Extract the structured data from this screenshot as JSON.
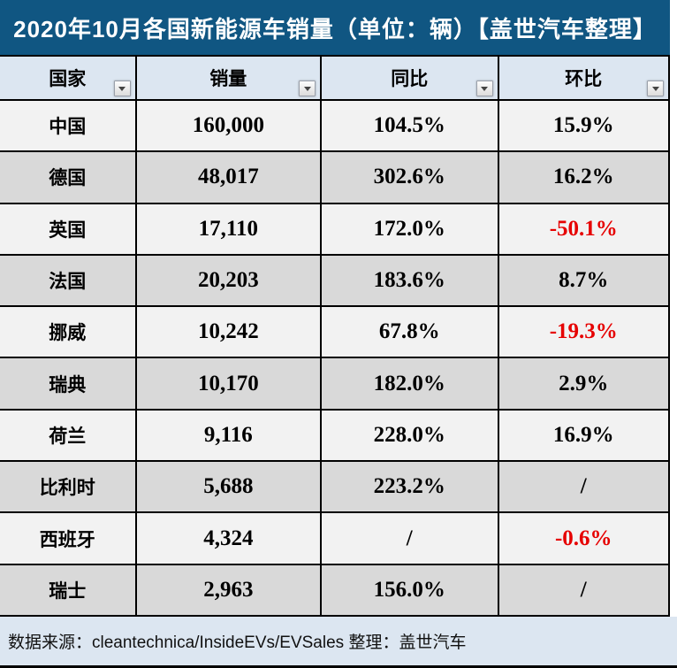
{
  "title": "2020年10月各国新能源车销量（单位：辆）【盖世汽车整理】",
  "table": {
    "columns": [
      {
        "label": "国家"
      },
      {
        "label": "销量"
      },
      {
        "label": "同比"
      },
      {
        "label": "环比"
      }
    ],
    "rows": [
      {
        "country": "中国",
        "sales": "160,000",
        "yoy": "104.5%",
        "mom": "15.9%"
      },
      {
        "country": "德国",
        "sales": "48,017",
        "yoy": "302.6%",
        "mom": "16.2%"
      },
      {
        "country": "英国",
        "sales": "17,110",
        "yoy": "172.0%",
        "mom": "-50.1%"
      },
      {
        "country": "法国",
        "sales": "20,203",
        "yoy": "183.6%",
        "mom": "8.7%"
      },
      {
        "country": "挪威",
        "sales": "10,242",
        "yoy": "67.8%",
        "mom": "-19.3%"
      },
      {
        "country": "瑞典",
        "sales": "10,170",
        "yoy": "182.0%",
        "mom": "2.9%"
      },
      {
        "country": "荷兰",
        "sales": "9,116",
        "yoy": "228.0%",
        "mom": "16.9%"
      },
      {
        "country": "比利时",
        "sales": "5,688",
        "yoy": "223.2%",
        "mom": "/"
      },
      {
        "country": "西班牙",
        "sales": "4,324",
        "yoy": "/",
        "mom": "-0.6%"
      },
      {
        "country": "瑞士",
        "sales": "2,963",
        "yoy": "156.0%",
        "mom": "/"
      }
    ]
  },
  "footer": {
    "text": "数据来源：cleantechnica/InsideEVs/EVSales 整理：盖世汽车"
  },
  "icons": {
    "filter_dropdown": "triangle-down"
  },
  "colors": {
    "title_bg": "#105682",
    "title_text": "#ffffff",
    "header_bg": "#dce6f1",
    "footer_bg": "#dce6f1",
    "row_light": "#f2f2f2",
    "row_dark": "#d9d9d9",
    "border": "#000000",
    "negative_value": "#e60000"
  },
  "chart_data": {
    "type": "table",
    "title": "2020年10月各国新能源车销量（单位：辆）【盖世汽车整理】",
    "columns": [
      "国家",
      "销量",
      "同比",
      "环比"
    ],
    "rows": [
      [
        "中国",
        "160,000",
        "104.5%",
        "15.9%"
      ],
      [
        "德国",
        "48,017",
        "302.6%",
        "16.2%"
      ],
      [
        "英国",
        "17,110",
        "172.0%",
        "-50.1%"
      ],
      [
        "法国",
        "20,203",
        "183.6%",
        "8.7%"
      ],
      [
        "挪威",
        "10,242",
        "67.8%",
        "-19.3%"
      ],
      [
        "瑞典",
        "10,170",
        "182.0%",
        "2.9%"
      ],
      [
        "荷兰",
        "9,116",
        "228.0%",
        "16.9%"
      ],
      [
        "比利时",
        "5,688",
        "223.2%",
        "/"
      ],
      [
        "西班牙",
        "4,324",
        "/",
        "-0.6%"
      ],
      [
        "瑞士",
        "2,963",
        "156.0%",
        "/"
      ]
    ],
    "notes": "负值以红色显示；数据来源：cleantechnica/InsideEVs/EVSales 整理：盖世汽车"
  }
}
